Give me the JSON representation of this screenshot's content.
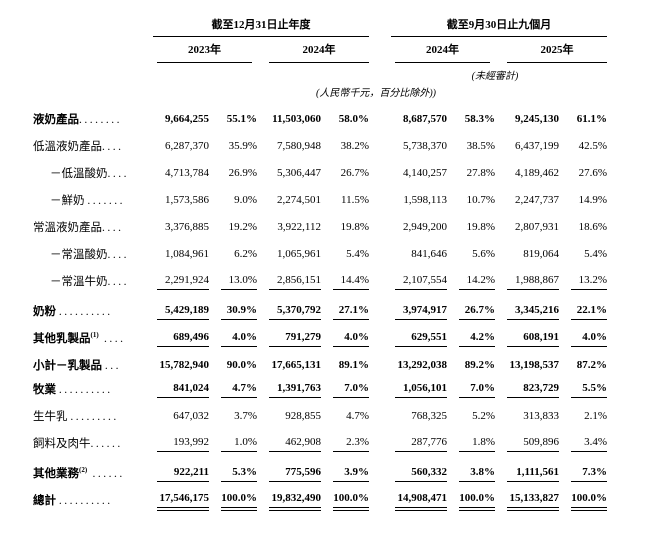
{
  "table": {
    "header": {
      "period1": "截至12月31日止年度",
      "period2": "截至9月30日止九個月",
      "years": [
        "2023年",
        "2024年",
        "2024年",
        "2025年"
      ],
      "unaudited": "(未經審計)",
      "units": "(人民幣千元，百分比除外))"
    },
    "rows": [
      {
        "label": "液奶產品",
        "sup": "",
        "dots": "........",
        "indent": false,
        "bold": true,
        "underline": "none",
        "gap_above": false,
        "values": [
          "9,664,255",
          "55.1%",
          "11,503,060",
          "58.0%",
          "8,687,570",
          "58.3%",
          "9,245,130",
          "61.1%"
        ]
      },
      {
        "label": "低溫液奶產品",
        "sup": "",
        "dots": "....",
        "indent": false,
        "bold": false,
        "underline": "none",
        "gap_above": false,
        "values": [
          "6,287,370",
          "35.9%",
          "7,580,948",
          "38.2%",
          "5,738,370",
          "38.5%",
          "6,437,199",
          "42.5%"
        ]
      },
      {
        "label": "－低溫酸奶",
        "sup": "",
        "dots": "....",
        "indent": true,
        "bold": false,
        "underline": "none",
        "gap_above": false,
        "values": [
          "4,713,784",
          "26.9%",
          "5,306,447",
          "26.7%",
          "4,140,257",
          "27.8%",
          "4,189,462",
          "27.6%"
        ]
      },
      {
        "label": "－鮮奶 ",
        "sup": "",
        "dots": ".......",
        "indent": true,
        "bold": false,
        "underline": "none",
        "gap_above": false,
        "values": [
          "1,573,586",
          "9.0%",
          "2,274,501",
          "11.5%",
          "1,598,113",
          "10.7%",
          "2,247,737",
          "14.9%"
        ]
      },
      {
        "label": "常溫液奶產品",
        "sup": "",
        "dots": "....",
        "indent": false,
        "bold": false,
        "underline": "none",
        "gap_above": false,
        "values": [
          "3,376,885",
          "19.2%",
          "3,922,112",
          "19.8%",
          "2,949,200",
          "19.8%",
          "2,807,931",
          "18.6%"
        ]
      },
      {
        "label": "－常溫酸奶",
        "sup": "",
        "dots": "....",
        "indent": true,
        "bold": false,
        "underline": "none",
        "gap_above": false,
        "values": [
          "1,084,961",
          "6.2%",
          "1,065,961",
          "5.4%",
          "841,646",
          "5.6%",
          "819,064",
          "5.4%"
        ]
      },
      {
        "label": "－常溫牛奶",
        "sup": "",
        "dots": "....",
        "indent": true,
        "bold": false,
        "underline": "single",
        "gap_above": false,
        "values": [
          "2,291,924",
          "13.0%",
          "2,856,151",
          "14.4%",
          "2,107,554",
          "14.2%",
          "1,988,867",
          "13.2%"
        ]
      },
      {
        "label": "奶粉 ",
        "sup": "",
        "dots": "..........",
        "indent": false,
        "bold": true,
        "underline": "single",
        "gap_above": true,
        "values": [
          "5,429,189",
          "30.9%",
          "5,370,792",
          "27.1%",
          "3,974,917",
          "26.7%",
          "3,345,216",
          "22.1%"
        ]
      },
      {
        "label": "其他乳製品",
        "sup": "(1)",
        "dots": " ....",
        "indent": false,
        "bold": true,
        "underline": "single",
        "gap_above": true,
        "values": [
          "689,496",
          "4.0%",
          "791,279",
          "4.0%",
          "629,551",
          "4.2%",
          "608,191",
          "4.0%"
        ]
      },
      {
        "label": "小計－乳製品 ",
        "sup": "",
        "dots": "...",
        "indent": false,
        "bold": true,
        "underline": "none",
        "gap_above": true,
        "values": [
          "15,782,940",
          "90.0%",
          "17,665,131",
          "89.1%",
          "13,292,038",
          "89.2%",
          "13,198,537",
          "87.2%"
        ]
      },
      {
        "label": "牧業 ",
        "sup": "",
        "dots": "..........",
        "indent": false,
        "bold": true,
        "underline": "single",
        "gap_above": false,
        "values": [
          "841,024",
          "4.7%",
          "1,391,763",
          "7.0%",
          "1,056,101",
          "7.0%",
          "823,729",
          "5.5%"
        ]
      },
      {
        "label": "生牛乳 ",
        "sup": "",
        "dots": ".........",
        "indent": false,
        "bold": false,
        "underline": "none",
        "gap_above": false,
        "values": [
          "647,032",
          "3.7%",
          "928,855",
          "4.7%",
          "768,325",
          "5.2%",
          "313,833",
          "2.1%"
        ]
      },
      {
        "label": "飼料及肉牛",
        "sup": "",
        "dots": "......",
        "indent": false,
        "bold": false,
        "underline": "single",
        "gap_above": false,
        "values": [
          "193,992",
          "1.0%",
          "462,908",
          "2.3%",
          "287,776",
          "1.8%",
          "509,896",
          "3.4%"
        ]
      },
      {
        "label": "其他業務",
        "sup": "(2)",
        "dots": " ......",
        "indent": false,
        "bold": true,
        "underline": "single",
        "gap_above": true,
        "values": [
          "922,211",
          "5.3%",
          "775,596",
          "3.9%",
          "560,332",
          "3.8%",
          "1,111,561",
          "7.3%"
        ]
      },
      {
        "label": "總計 ",
        "sup": "",
        "dots": "..........",
        "indent": false,
        "bold": true,
        "underline": "double",
        "gap_above": true,
        "values": [
          "17,546,175",
          "100.0%",
          "19,832,490",
          "100.0%",
          "14,908,471",
          "100.0%",
          "15,133,827",
          "100.0%"
        ]
      }
    ]
  }
}
